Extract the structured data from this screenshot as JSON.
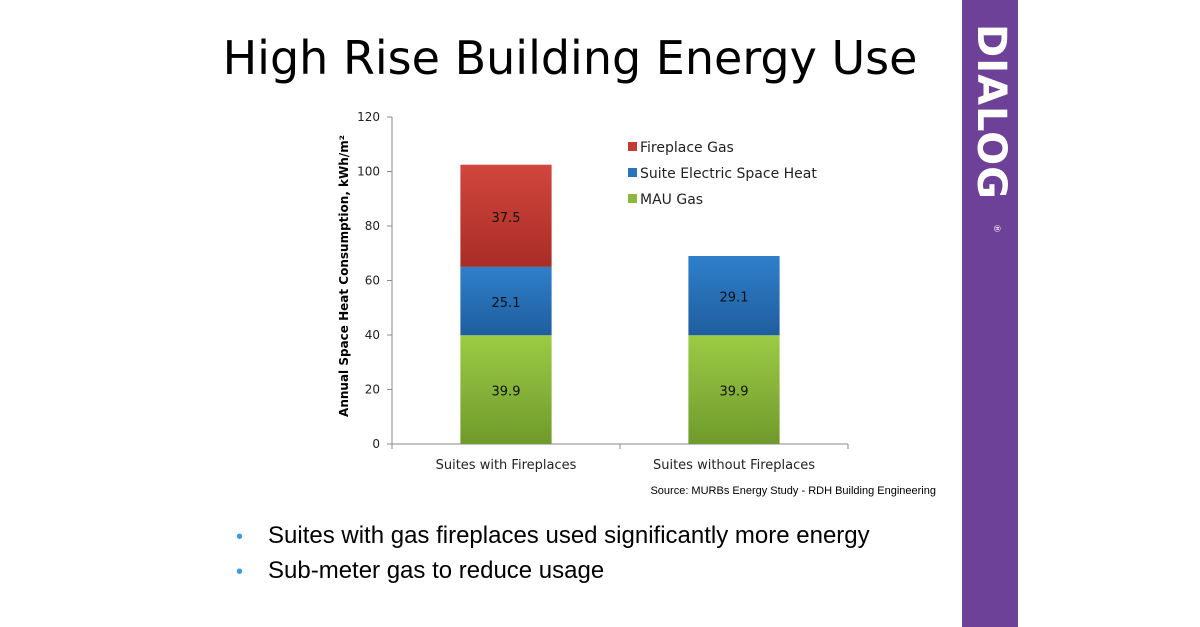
{
  "slide": {
    "title": "High Rise Building Energy Use",
    "source": "Source: MURBs Energy Study - RDH Building Engineering",
    "bullets": [
      "Suites with gas fireplaces used significantly more energy",
      "Sub-meter gas to reduce usage"
    ],
    "bullet_symbol": "•"
  },
  "brand": {
    "logo_text": "DIALOG",
    "registered_mark": "®",
    "color": "#6e4199"
  },
  "chart_data": {
    "type": "bar",
    "stacked": true,
    "categories": [
      "Suites with Fireplaces",
      "Suites without Fireplaces"
    ],
    "series": [
      {
        "name": "MAU Gas",
        "values": [
          39.9,
          39.9
        ],
        "color": "#8db63c"
      },
      {
        "name": "Suite Electric Space Heat",
        "values": [
          25.1,
          29.1
        ],
        "color": "#2a73bd"
      },
      {
        "name": "Fireplace Gas",
        "values": [
          37.5,
          null
        ],
        "color": "#c43b33"
      }
    ],
    "legend_order": [
      "Fireplace Gas",
      "Suite Electric Space Heat",
      "MAU Gas"
    ],
    "ylabel": "Annual Space Heat Consumption, kWh/m²",
    "xlabel": "",
    "ylim": [
      0,
      120
    ],
    "yticks": [
      0,
      20,
      40,
      60,
      80,
      100,
      120
    ],
    "grid": false,
    "legend_position": "top-right"
  }
}
